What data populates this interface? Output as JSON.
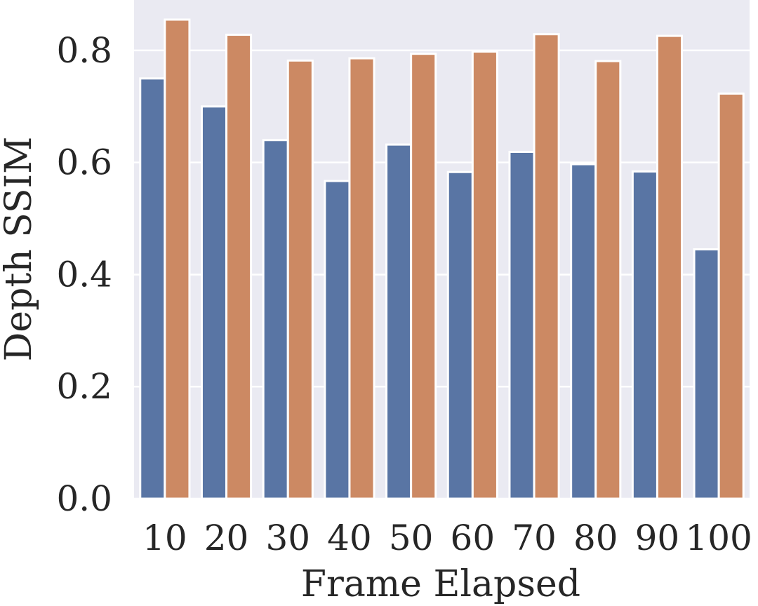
{
  "chart_data": {
    "type": "bar",
    "title": "",
    "xlabel": "Frame Elapsed",
    "ylabel": "Depth SSIM",
    "categories": [
      "10",
      "20",
      "30",
      "40",
      "50",
      "60",
      "70",
      "80",
      "90",
      "100"
    ],
    "series": [
      {
        "values": [
          0.75,
          0.7,
          0.64,
          0.567,
          0.632,
          0.583,
          0.619,
          0.597,
          0.584,
          0.445
        ]
      },
      {
        "values": [
          0.855,
          0.828,
          0.782,
          0.786,
          0.794,
          0.798,
          0.829,
          0.781,
          0.826,
          0.723
        ]
      }
    ],
    "yticks": [
      "0.0",
      "0.2",
      "0.4",
      "0.6",
      "0.8"
    ],
    "ylim": [
      0,
      0.89
    ],
    "grid": true,
    "colors": {
      "series": [
        "#5975a4",
        "#cc8963"
      ],
      "background": "#eaeaf2",
      "grid": "#ffffff",
      "bar_edge": "#ffffff"
    }
  }
}
